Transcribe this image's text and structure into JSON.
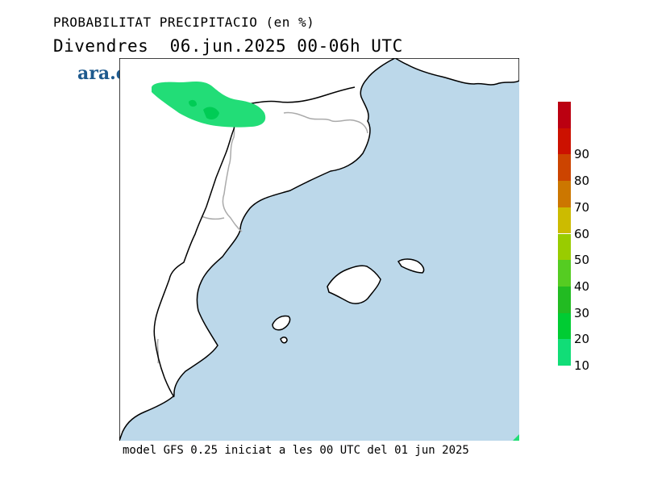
{
  "title": {
    "line1": "PROBABILITAT PRECIPITACIO (en %)",
    "line2": "Divendres  06.jun.2025 00-06h UTC"
  },
  "logo": {
    "text": "ara.cat",
    "color": "#1e5a8e"
  },
  "footer": "model GFS 0.25 iniciat a les 00 UTC del 01 jun 2025",
  "map": {
    "sea_color": "#bcd8ea",
    "land_color": "#ffffff",
    "coast_color": "#000000",
    "border_color": "#aaaaaa",
    "precip_zone": {
      "probability_range": "10-20",
      "color": "#22dd77"
    }
  },
  "legend": {
    "levels": [
      {
        "label": "10",
        "color": "#11dd77"
      },
      {
        "label": "20",
        "color": "#00cc33"
      },
      {
        "label": "30",
        "color": "#22bb22"
      },
      {
        "label": "40",
        "color": "#55cc22"
      },
      {
        "label": "50",
        "color": "#99cc00"
      },
      {
        "label": "60",
        "color": "#ccbb00"
      },
      {
        "label": "70",
        "color": "#cc7700"
      },
      {
        "label": "80",
        "color": "#cc4400"
      },
      {
        "label": "90",
        "color": "#cc1100"
      },
      {
        "label": "",
        "color": "#bb0011"
      }
    ]
  }
}
